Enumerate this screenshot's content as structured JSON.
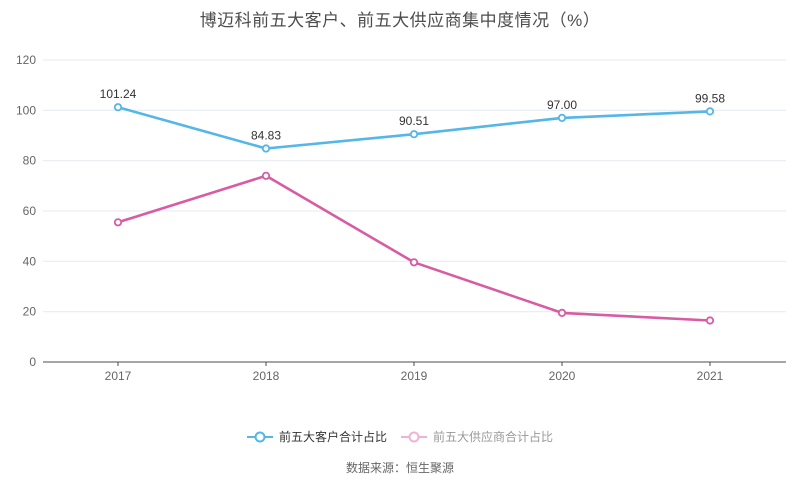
{
  "title": "博迈科前五大客户、前五大供应商集中度情况（%）",
  "source": "数据来源：恒生聚源",
  "colors": {
    "title_text": "#4d4d4d",
    "source_text": "#666666",
    "grid_line": "#e4e9f2",
    "axis_line": "#4d4d4d",
    "axis_label": "#666666",
    "data_label": "#333333",
    "point_fill": "#ffffff",
    "background": "#ffffff"
  },
  "chart_data": {
    "type": "line",
    "x": [
      "2017",
      "2018",
      "2019",
      "2020",
      "2021"
    ],
    "series": [
      {
        "name": "前五大客户合计占比",
        "values": [
          101.24,
          84.83,
          90.51,
          97.0,
          99.58
        ],
        "labels": [
          "101.24",
          "84.83",
          "90.51",
          "97.00",
          "99.58"
        ],
        "color": "#55b6e8"
      },
      {
        "name": "前五大供应商合计占比",
        "values": [
          55.5,
          74.0,
          39.6,
          19.5,
          16.5
        ],
        "labels": null,
        "color": "#d85ca3"
      }
    ],
    "ylim": [
      0,
      120
    ],
    "yticks": [
      0,
      20,
      40,
      60,
      80,
      100,
      120
    ],
    "grid": true,
    "legend_position": "bottom"
  },
  "legend": {
    "items": [
      {
        "label": "前五大客户合计占比",
        "marker_color": "#55b6e8",
        "text_color": "#333333"
      },
      {
        "label": "前五大供应商合计占比",
        "marker_color": "#f0b3d6",
        "text_color": "#999999"
      }
    ]
  }
}
